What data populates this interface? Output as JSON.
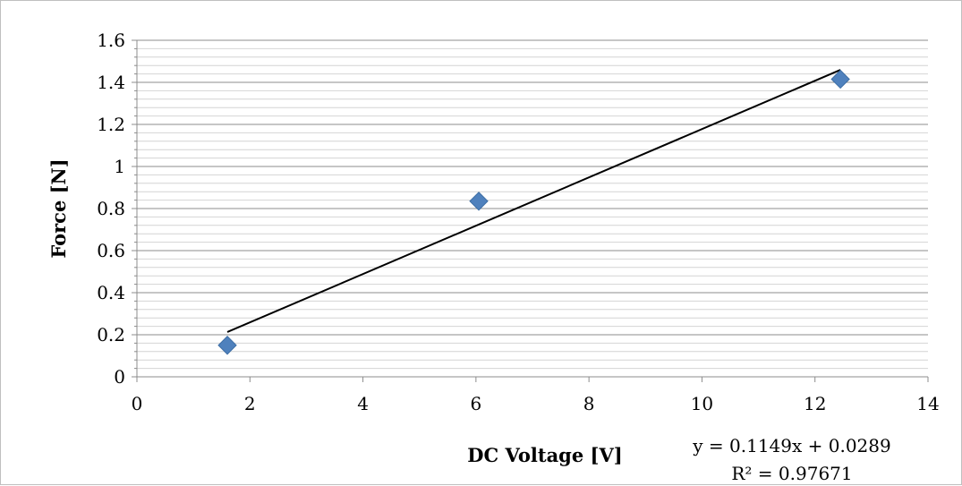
{
  "chart_data": {
    "type": "scatter",
    "title": "",
    "xlabel": "DC Voltage [V]",
    "ylabel": "Force [N]",
    "xlim": [
      0,
      14
    ],
    "ylim": [
      0,
      1.6
    ],
    "x_ticks": [
      "0",
      "2",
      "4",
      "6",
      "8",
      "10",
      "12",
      "14"
    ],
    "y_ticks": [
      "0",
      "0.2",
      "0.4",
      "0.6",
      "0.8",
      "1",
      "1.2",
      "1.4",
      "1.6"
    ],
    "y_major_step": 0.2,
    "y_minor_step": 0.04,
    "grid": true,
    "legend": "none",
    "series": [
      {
        "x": [
          1.6,
          6.05,
          12.45
        ],
        "y": [
          0.15,
          0.835,
          1.415
        ],
        "marker": "diamond",
        "color": "#4F81BD"
      }
    ],
    "trendline": {
      "type": "linear",
      "slope": 0.1149,
      "intercept": 0.0289,
      "x_range": [
        1.6,
        12.45
      ],
      "color": "#000000",
      "equation_label": "y = 0.1149x + 0.0289",
      "r2_label": "R² = 0.97671"
    }
  }
}
